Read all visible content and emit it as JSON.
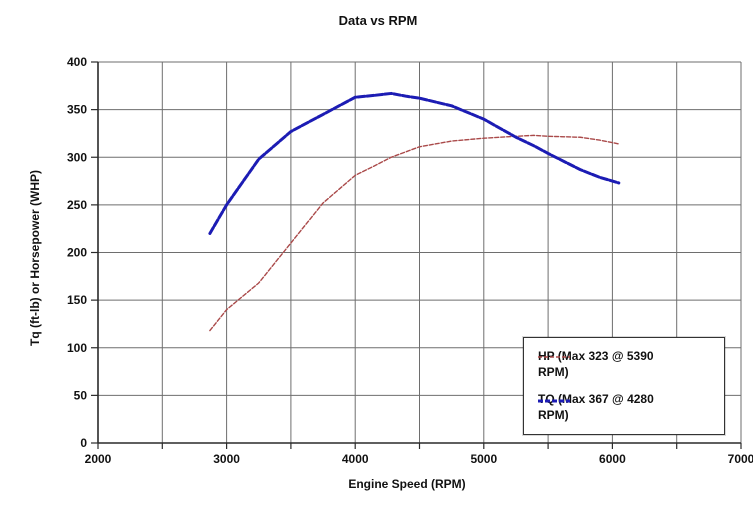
{
  "chart_data": {
    "type": "line",
    "title": "Data vs RPM",
    "xlabel": "Engine Speed (RPM)",
    "ylabel": "Tq (ft-lb) or Horsepower (WHP)",
    "xlim": [
      2000,
      7000
    ],
    "ylim": [
      0,
      400
    ],
    "grid": true,
    "grid_step_x": 500,
    "grid_step_y": 50,
    "x_ticks": [
      2000,
      3000,
      4000,
      5000,
      6000,
      7000
    ],
    "y_ticks": [
      0,
      50,
      100,
      150,
      200,
      250,
      300,
      350,
      400
    ],
    "legend_position": "bottom-right",
    "grid_color": "#6e6e6e",
    "axis_color": "#2a2a2a",
    "x": [
      2870,
      3000,
      3250,
      3500,
      3750,
      4000,
      4150,
      4280,
      4400,
      4500,
      4750,
      5000,
      5250,
      5390,
      5500,
      5750,
      5900,
      6050
    ],
    "series": [
      {
        "name": "HP",
        "legend_label": "HP (Max 323 @ 5390 RPM)",
        "max_value": 323,
        "max_rpm": 5390,
        "color": "#aa4a4a",
        "line_style": "dashed-thin",
        "values": [
          118,
          140,
          168,
          210,
          252,
          281,
          291,
          300,
          306,
          311,
          317,
          320,
          322,
          323,
          322,
          321,
          318,
          314
        ]
      },
      {
        "name": "TQ",
        "legend_label": "TQ (Max 367 @ 4280 RPM)",
        "max_value": 367,
        "max_rpm": 4280,
        "color": "#1c1cb4",
        "line_style": "dashed-thick",
        "values": [
          220,
          250,
          298,
          327,
          345,
          363,
          365,
          367,
          364,
          362,
          354,
          340,
          321,
          312,
          304,
          287,
          279,
          273
        ]
      }
    ]
  }
}
